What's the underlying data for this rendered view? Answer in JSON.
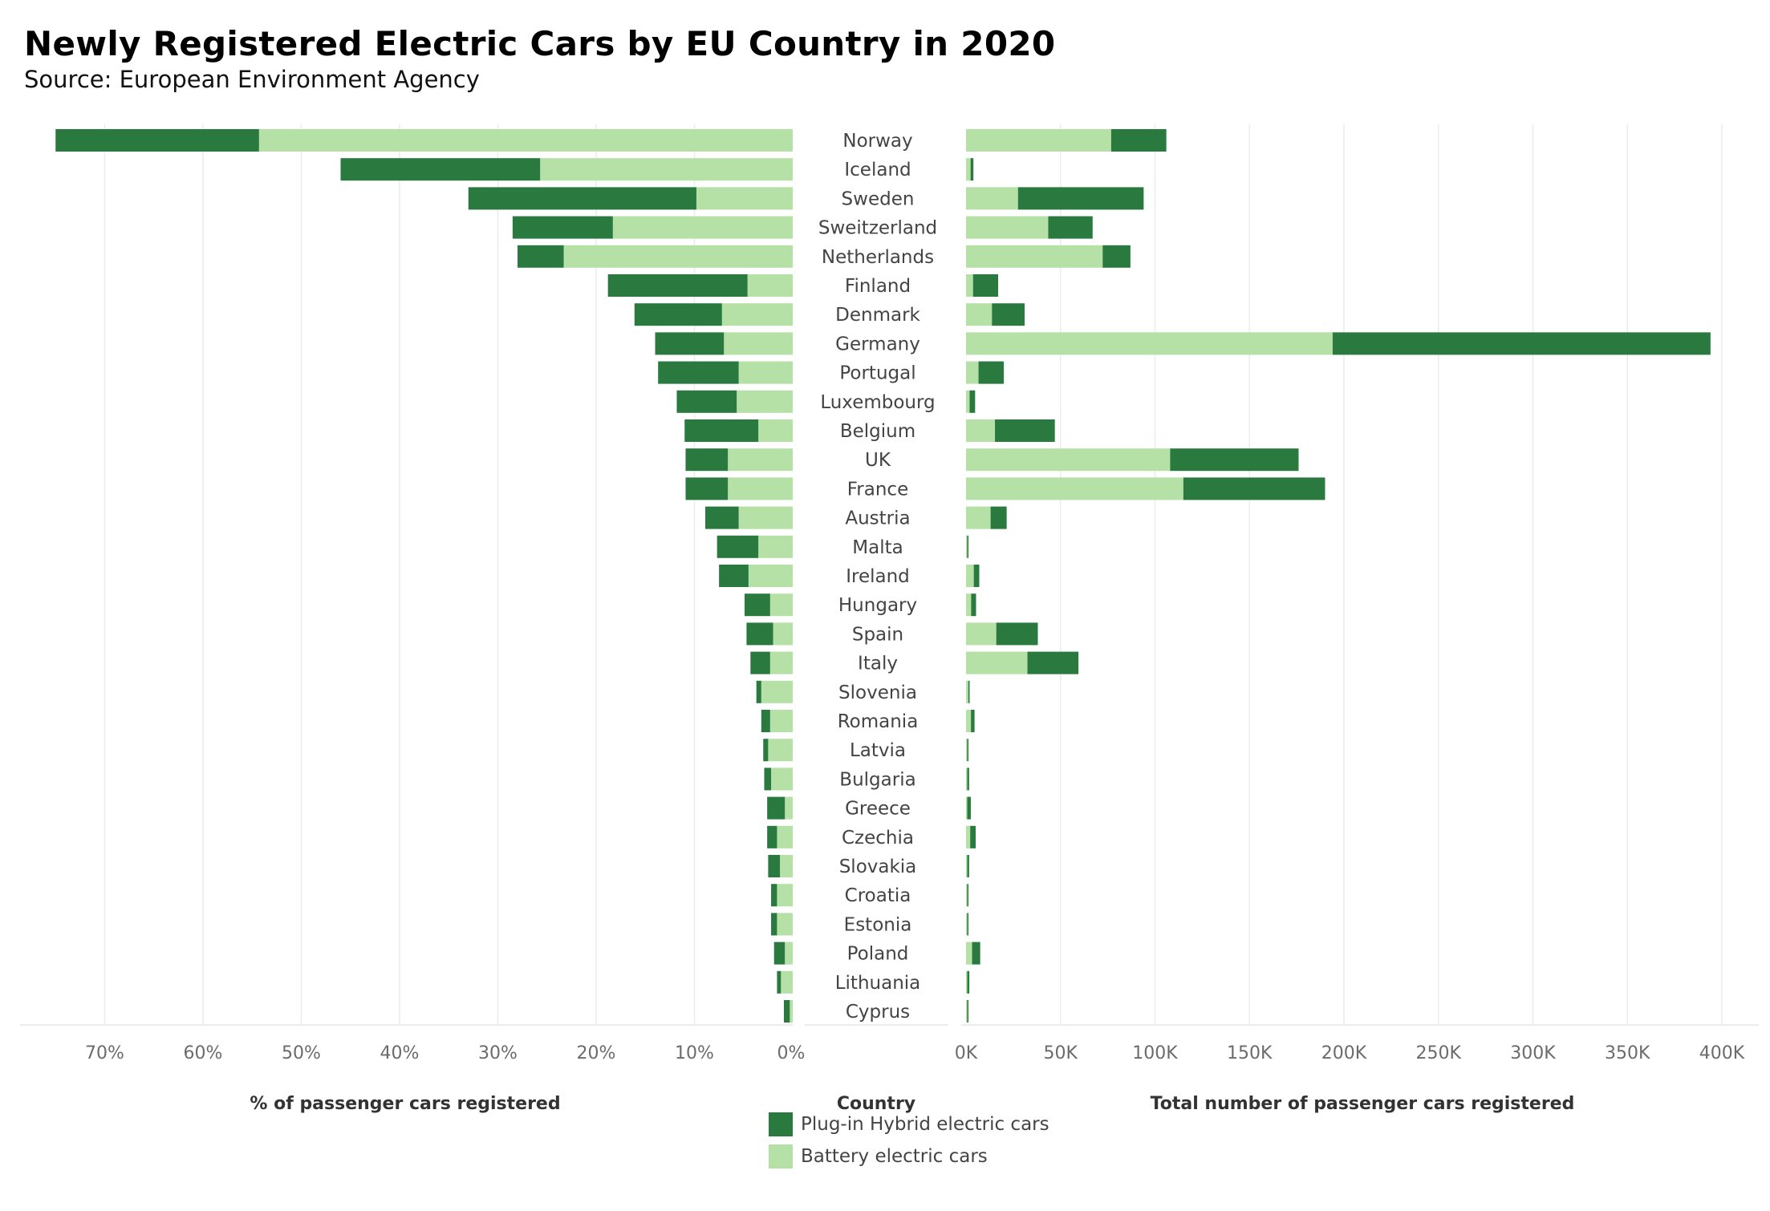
{
  "title": "Newly Registered Electric Cars by EU Country in 2020",
  "subtitle": "Source: European Environment Agency",
  "colors": {
    "phev": "#2a7a40",
    "bev": "#b5e0a6",
    "grid": "#ececec"
  },
  "legend": {
    "phev": "Plug-in Hybrid electric cars",
    "bev": "Battery electric cars"
  },
  "axes": {
    "left_title": "% of passenger cars registered",
    "center_title": "Country",
    "right_title": "Total number of passenger cars registered",
    "left_ticks": [
      "70%",
      "60%",
      "50%",
      "40%",
      "30%",
      "20%",
      "10%",
      "0%"
    ],
    "right_ticks": [
      "0K",
      "50K",
      "100K",
      "150K",
      "200K",
      "250K",
      "300K",
      "350K",
      "400K"
    ]
  },
  "chart_data": {
    "type": "bar",
    "orientation": "horizontal",
    "stacked": true,
    "layout": "butterfly",
    "categories": [
      "Norway",
      "Iceland",
      "Sweden",
      "Sweitzerland",
      "Netherlands",
      "Finland",
      "Denmark",
      "Germany",
      "Portugal",
      "Luxembourg",
      "Belgium",
      "UK",
      "France",
      "Austria",
      "Malta",
      "Ireland",
      "Hungary",
      "Spain",
      "Italy",
      "Slovenia",
      "Romania",
      "Latvia",
      "Bulgaria",
      "Greece",
      "Czechia",
      "Slovakia",
      "Croatia",
      "Estonia",
      "Poland",
      "Lithuania",
      "Cyprus"
    ],
    "left": {
      "unit": "%",
      "xlim": [
        0,
        75
      ],
      "series": [
        {
          "name": "Battery electric cars",
          "values": [
            54.3,
            25.7,
            9.8,
            18.3,
            23.3,
            4.6,
            7.2,
            7.0,
            5.5,
            5.7,
            3.5,
            6.6,
            6.6,
            5.5,
            3.5,
            4.5,
            2.3,
            2.0,
            2.3,
            3.2,
            2.3,
            2.5,
            2.2,
            0.8,
            1.6,
            1.3,
            1.6,
            1.6,
            0.8,
            1.2,
            0.3
          ]
        },
        {
          "name": "Plug-in Hybrid electric cars",
          "values": [
            20.7,
            20.3,
            23.2,
            10.2,
            4.7,
            14.2,
            8.9,
            7.0,
            8.2,
            6.1,
            7.5,
            4.3,
            4.3,
            3.4,
            4.2,
            3.0,
            2.6,
            2.7,
            2.0,
            0.5,
            0.9,
            0.5,
            0.7,
            1.8,
            1.0,
            1.2,
            0.6,
            0.6,
            1.1,
            0.4,
            0.6
          ]
        }
      ]
    },
    "right": {
      "unit": "count",
      "xlim": [
        0,
        400000
      ],
      "series": [
        {
          "name": "Battery electric cars",
          "values": [
            76800,
            2400,
            27500,
            43500,
            72300,
            3700,
            13700,
            194000,
            6600,
            1900,
            15300,
            108000,
            115000,
            13000,
            300,
            4100,
            2700,
            16000,
            32500,
            1200,
            2600,
            500,
            600,
            500,
            2200,
            400,
            400,
            400,
            3200,
            500,
            100
          ]
        },
        {
          "name": "Plug-in Hybrid electric cars",
          "values": [
            29200,
            1500,
            66500,
            23500,
            14700,
            13300,
            17300,
            200000,
            13400,
            2900,
            31700,
            68000,
            75000,
            8500,
            200,
            2900,
            2600,
            22000,
            27000,
            700,
            1900,
            300,
            1000,
            1900,
            2900,
            1000,
            600,
            300,
            4300,
            1100,
            600
          ]
        }
      ]
    }
  }
}
